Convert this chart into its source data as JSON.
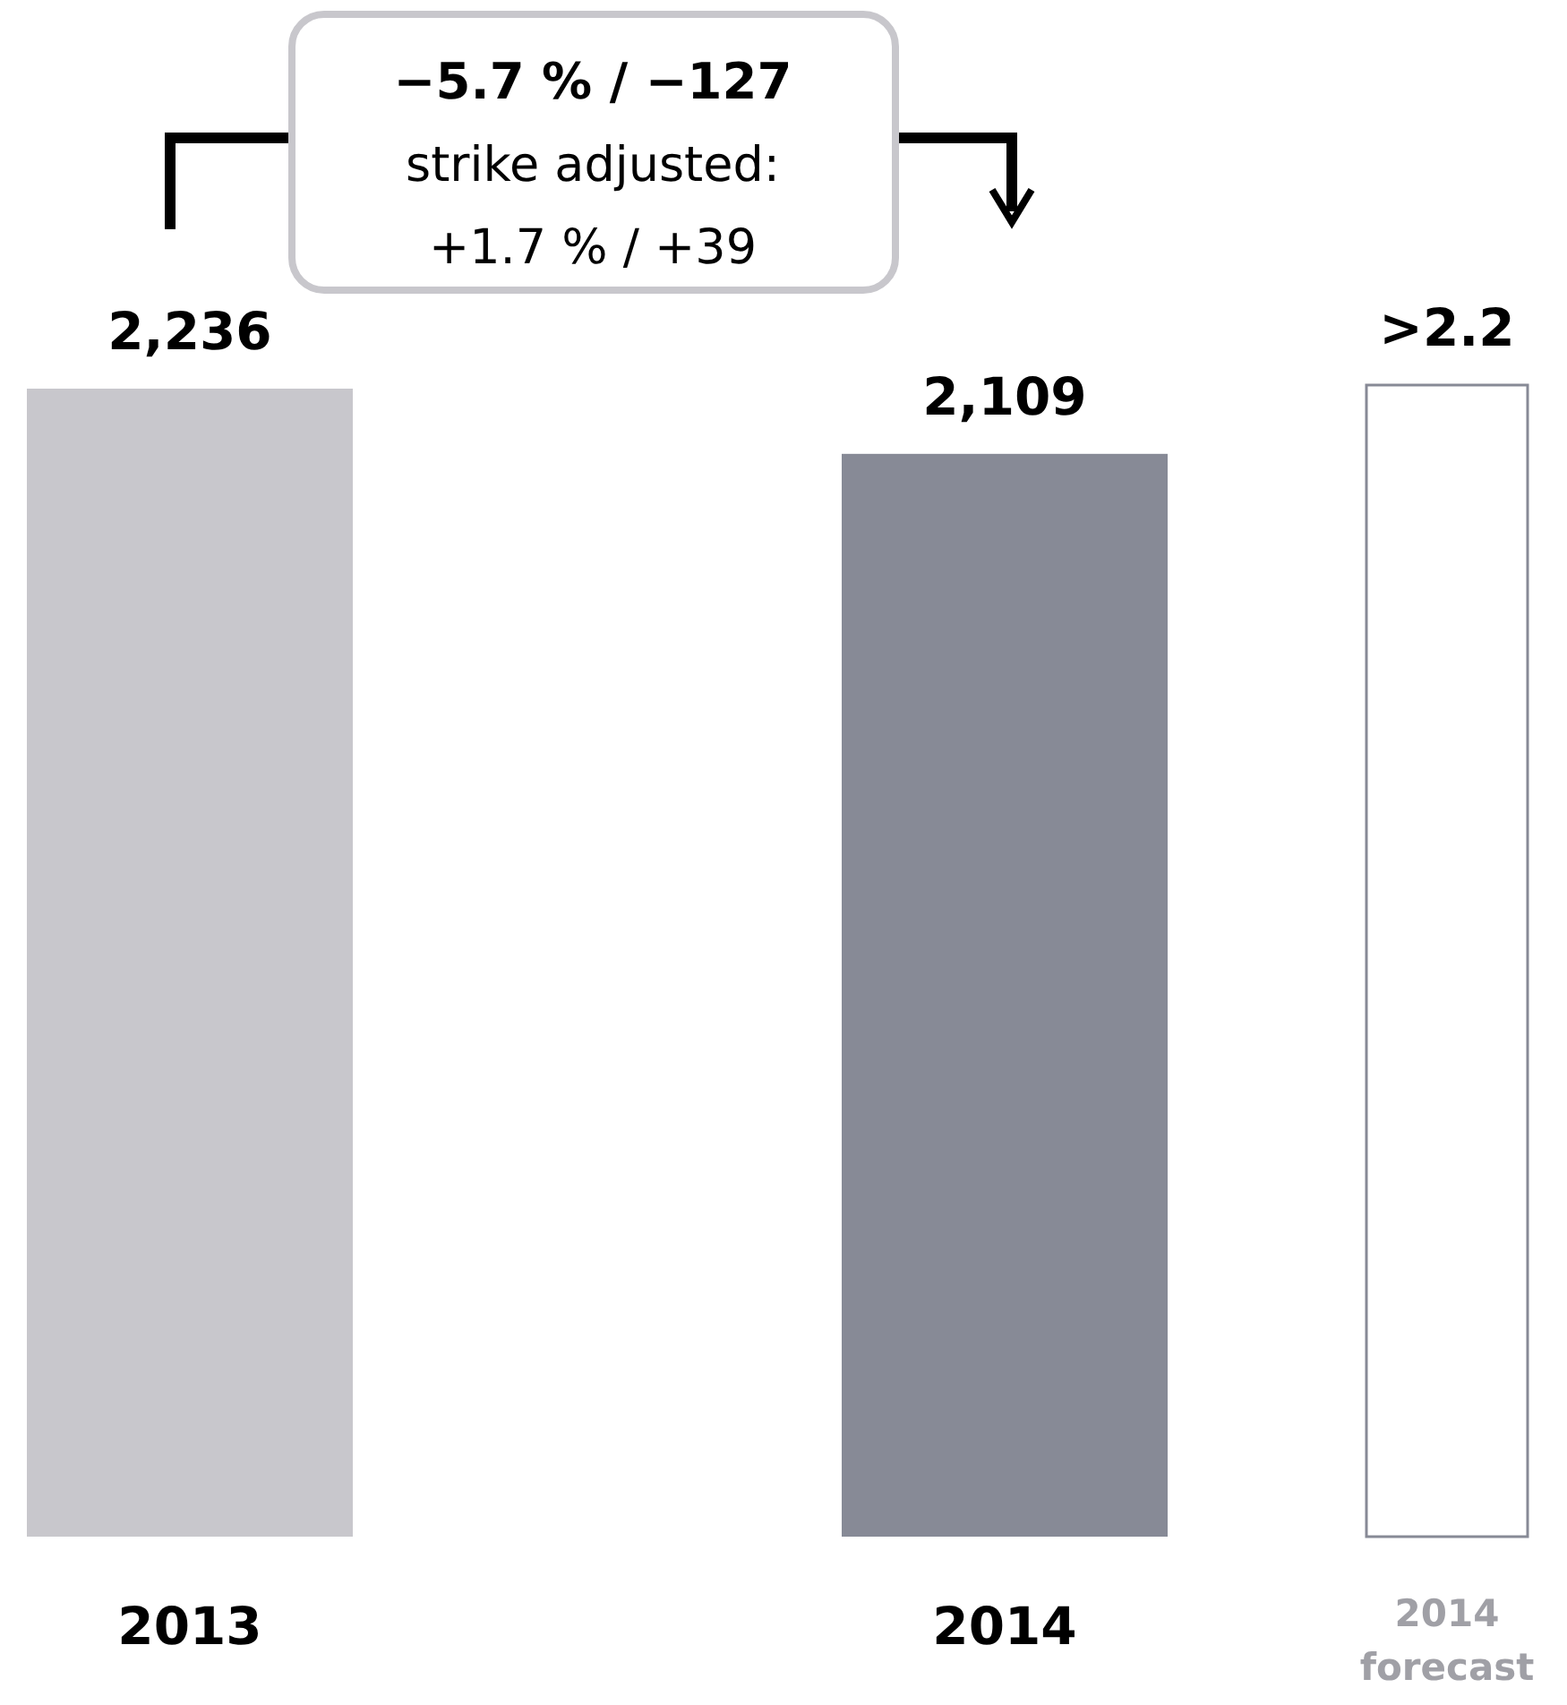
{
  "chart_data": {
    "type": "bar",
    "categories": [
      "2013",
      "2014",
      "2014\nforecast"
    ],
    "values": [
      2236,
      2109,
      2243
    ],
    "colors": [
      "#c8c7cc",
      "#878a96",
      "#ffffff"
    ],
    "value_labels": [
      "2,236",
      "2,109",
      ">2.2"
    ],
    "annotations": [
      "−5.7 % / −127\nstrike adjusted:\n+1.7 % / +39"
    ]
  }
}
